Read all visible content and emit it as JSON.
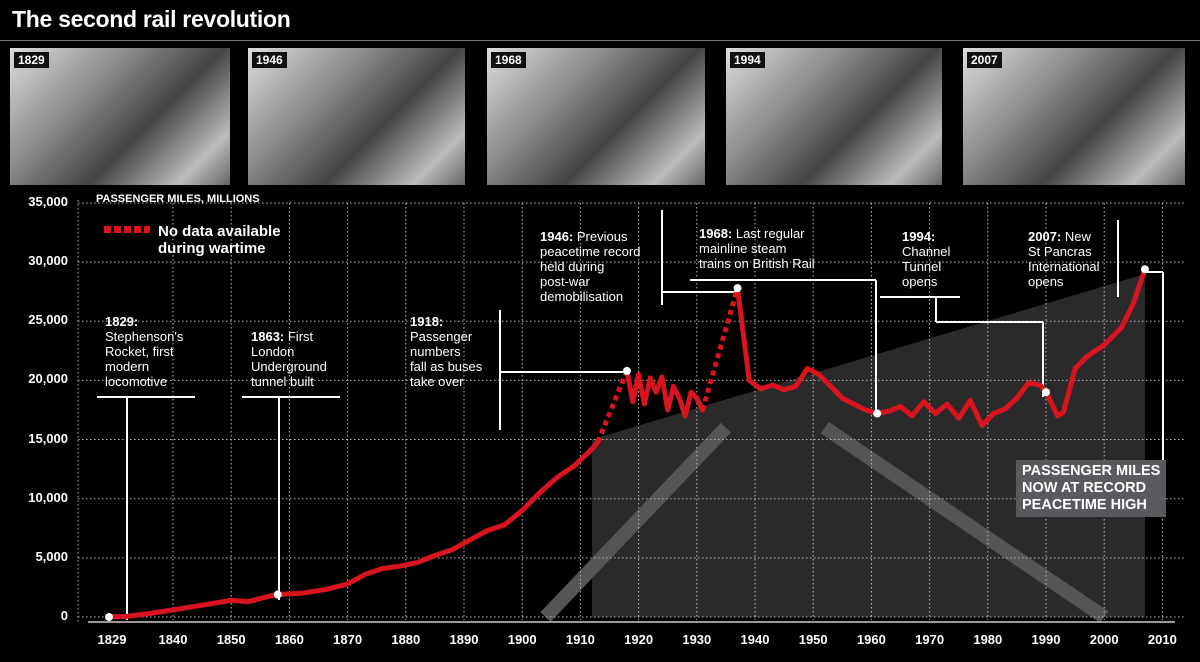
{
  "title": "The second rail revolution",
  "photos": [
    {
      "year": "1829"
    },
    {
      "year": "1946"
    },
    {
      "year": "1968"
    },
    {
      "year": "1994"
    },
    {
      "year": "2007"
    }
  ],
  "legend": {
    "line1": "No data available",
    "line2": "during wartime",
    "color": "#d9141e"
  },
  "annotations": [
    {
      "year": "1829:",
      "text": [
        "Stephenson's",
        "Rocket, first",
        "modern",
        "locomotive"
      ]
    },
    {
      "year": "1863:",
      "text": [
        " First",
        "London",
        "Underground",
        "tunnel built"
      ]
    },
    {
      "year": "1918:",
      "text": [
        "Passenger",
        "numbers",
        "fall as buses",
        "take over"
      ]
    },
    {
      "year": "1946:",
      "text": [
        " Previous",
        "peacetime record",
        "held during",
        "post-war",
        "demobilisation"
      ]
    },
    {
      "year": "1968:",
      "text": [
        " Last regular",
        "mainline steam",
        "trains on British Rail"
      ]
    },
    {
      "year": "1994:",
      "text": [
        "Channel",
        "Tunnel",
        "opens"
      ]
    },
    {
      "year": "2007:",
      "text": [
        " New",
        "St Pancras",
        "International",
        "opens"
      ]
    }
  ],
  "record_box": [
    "PASSENGER MILES",
    "NOW AT RECORD",
    "PEACETIME HIGH"
  ],
  "chart_data": {
    "type": "line",
    "title": "The second rail revolution",
    "ylabel": "PASSENGER MILES, MILLIONS",
    "xlabel": "",
    "ylim": [
      0,
      35000
    ],
    "xlim": [
      1829,
      2010
    ],
    "grid": true,
    "legend_position": "top-left",
    "line_color": "#d9141e",
    "y_ticks": [
      "0",
      "5,000",
      "10,000",
      "15,000",
      "20,000",
      "25,000",
      "30,000",
      "35,000"
    ],
    "x_ticks": [
      "1829",
      "1840",
      "1850",
      "1860",
      "1870",
      "1880",
      "1890",
      "1900",
      "1910",
      "1920",
      "1930",
      "1940",
      "1950",
      "1960",
      "1970",
      "1980",
      "1990",
      "2000",
      "2010"
    ],
    "segments": [
      {
        "style": "solid",
        "points": [
          [
            1829,
            0
          ],
          [
            1832,
            50
          ],
          [
            1836,
            300
          ],
          [
            1840,
            600
          ],
          [
            1845,
            1000
          ],
          [
            1850,
            1400
          ],
          [
            1853,
            1300
          ],
          [
            1856,
            1700
          ],
          [
            1858,
            1900
          ],
          [
            1862,
            2000
          ],
          [
            1866,
            2300
          ],
          [
            1870,
            2800
          ],
          [
            1873,
            3600
          ],
          [
            1876,
            4100
          ],
          [
            1879,
            4300
          ],
          [
            1882,
            4600
          ],
          [
            1885,
            5200
          ],
          [
            1888,
            5700
          ],
          [
            1891,
            6500
          ],
          [
            1894,
            7300
          ],
          [
            1897,
            7800
          ],
          [
            1900,
            9000
          ],
          [
            1903,
            10500
          ],
          [
            1906,
            11800
          ],
          [
            1909,
            12800
          ],
          [
            1912,
            14200
          ],
          [
            1913,
            14800
          ]
        ]
      },
      {
        "style": "dashed",
        "points": [
          [
            1913,
            14800
          ],
          [
            1918,
            20800
          ]
        ]
      },
      {
        "style": "solid",
        "points": [
          [
            1918,
            20800
          ],
          [
            1919,
            18200
          ],
          [
            1920,
            20500
          ],
          [
            1921,
            18000
          ],
          [
            1922,
            20200
          ],
          [
            1923,
            19000
          ],
          [
            1924,
            20300
          ],
          [
            1925,
            17500
          ],
          [
            1926,
            19500
          ],
          [
            1927,
            18500
          ],
          [
            1928,
            17000
          ],
          [
            1929,
            19000
          ],
          [
            1930,
            18500
          ],
          [
            1931,
            17500
          ]
        ]
      },
      {
        "style": "dashed",
        "points": [
          [
            1931,
            17500
          ],
          [
            1937,
            27800
          ]
        ]
      },
      {
        "style": "solid",
        "points": [
          [
            1937,
            27800
          ],
          [
            1939,
            20000
          ],
          [
            1941,
            19300
          ],
          [
            1943,
            19600
          ],
          [
            1945,
            19200
          ],
          [
            1947,
            19500
          ],
          [
            1949,
            21000
          ],
          [
            1951,
            20500
          ],
          [
            1953,
            19500
          ],
          [
            1955,
            18500
          ],
          [
            1957,
            18000
          ],
          [
            1959,
            17500
          ],
          [
            1961,
            17200
          ],
          [
            1963,
            17400
          ],
          [
            1965,
            17800
          ],
          [
            1967,
            17000
          ],
          [
            1969,
            18200
          ],
          [
            1971,
            17200
          ],
          [
            1973,
            18000
          ],
          [
            1975,
            16800
          ],
          [
            1977,
            18300
          ],
          [
            1979,
            16200
          ],
          [
            1981,
            17200
          ],
          [
            1983,
            17600
          ],
          [
            1985,
            18500
          ],
          [
            1987,
            19800
          ],
          [
            1989,
            19600
          ],
          [
            1990,
            19000
          ],
          [
            1992,
            17000
          ],
          [
            1993,
            17300
          ],
          [
            1995,
            21000
          ],
          [
            1997,
            22000
          ],
          [
            2000,
            23000
          ],
          [
            2003,
            24500
          ],
          [
            2005,
            26500
          ],
          [
            2007,
            29400
          ]
        ]
      }
    ],
    "markers": [
      [
        1829,
        0
      ],
      [
        1858,
        1900
      ],
      [
        1918,
        20800
      ],
      [
        1937,
        27800
      ],
      [
        1961,
        17200
      ],
      [
        1990,
        19000
      ],
      [
        2007,
        29400
      ]
    ]
  }
}
